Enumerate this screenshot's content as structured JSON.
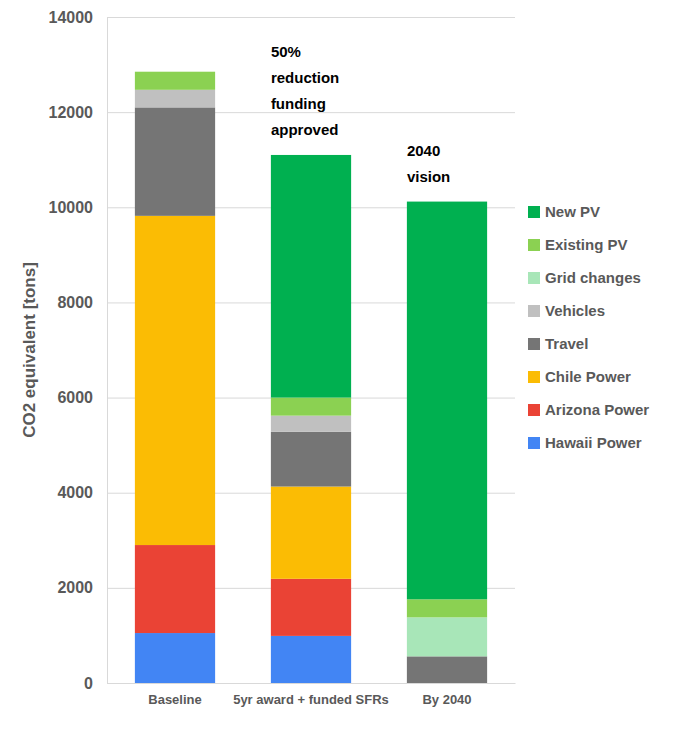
{
  "chart_data": {
    "type": "bar",
    "stacked": true,
    "categories": [
      "Baseline",
      "5yr award + funded SFRs",
      "By 2040"
    ],
    "y_label": "CO2 equivalent [tons]",
    "ylim": [
      0,
      14000
    ],
    "yticks": [
      0,
      2000,
      4000,
      6000,
      8000,
      10000,
      12000,
      14000
    ],
    "grid": true,
    "legend": "right",
    "series": [
      {
        "name": "Hawaii Power",
        "color": "#4285f4",
        "values": [
          1050,
          990,
          0
        ]
      },
      {
        "name": "Arizona Power",
        "color": "#ea4335",
        "values": [
          1850,
          1200,
          0
        ]
      },
      {
        "name": "Chile Power",
        "color": "#fbbc04",
        "values": [
          6920,
          1940,
          0
        ]
      },
      {
        "name": "Travel",
        "color": "#757575",
        "values": [
          2280,
          1150,
          560
        ]
      },
      {
        "name": "Vehicles",
        "color": "#c0c0c0",
        "values": [
          370,
          340,
          0
        ]
      },
      {
        "name": "Grid changes",
        "color": "#a8e6b8",
        "values": [
          0,
          0,
          820
        ]
      },
      {
        "name": "Existing PV",
        "color": "#8bd152",
        "values": [
          380,
          380,
          380
        ]
      },
      {
        "name": "New PV",
        "color": "#00b050",
        "values": [
          0,
          5100,
          8360
        ]
      }
    ],
    "annotations": [
      {
        "text": "50% reduction funding approved",
        "x": 1
      },
      {
        "text": "2040 vision",
        "x": 2
      }
    ]
  }
}
